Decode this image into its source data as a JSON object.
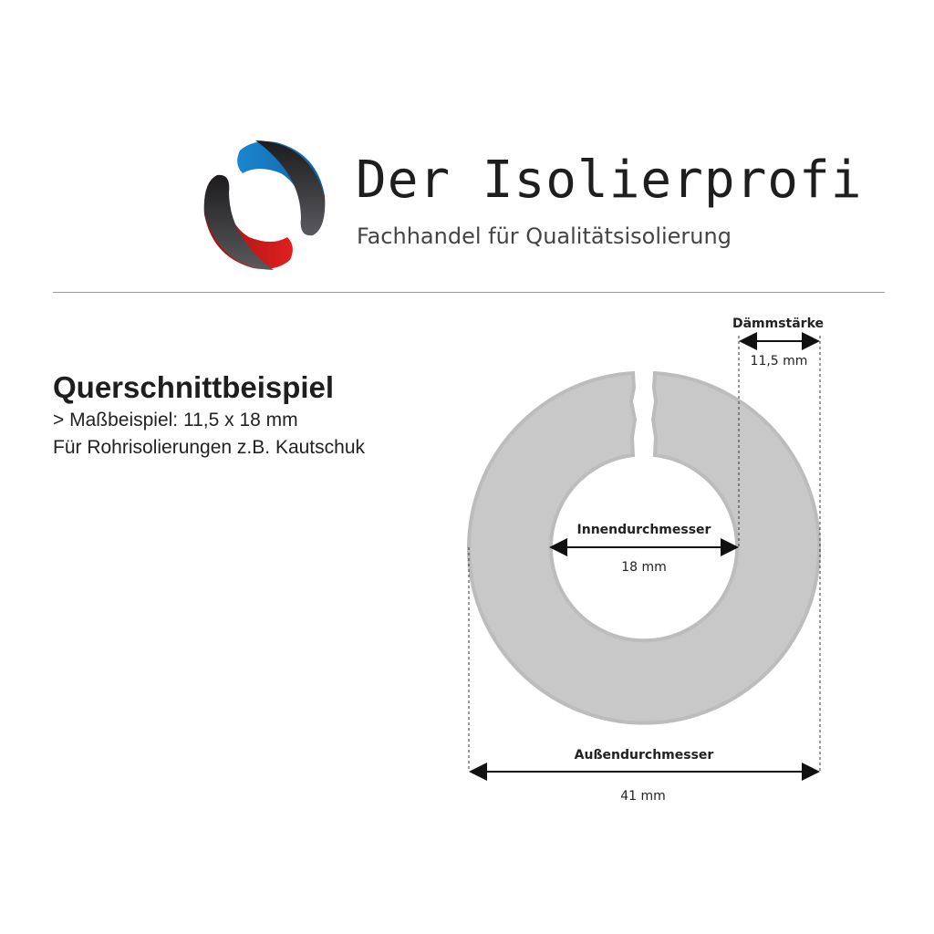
{
  "header": {
    "brand_name": "Der Isolierprofi",
    "tagline": "Fachhandel für Qualitätsisolierung",
    "logo_colors": {
      "blue": "#1a86d0",
      "red": "#d51a1a",
      "dark": "#2b2b2d"
    }
  },
  "intro": {
    "title": "Querschnittbeispiel",
    "line1": "> Maßbeispiel: 11,5 x 18 mm",
    "line2": "Für Rohrisolierungen z.B. Kautschuk"
  },
  "diagram": {
    "ring_color": "#c8c8c8",
    "thickness_label": "Dämmstärke",
    "thickness_value": "11,5 mm",
    "inner_label": "Innendurchmesser",
    "inner_value": "18 mm",
    "outer_label": "Außendurchmesser",
    "outer_value": "41 mm"
  }
}
